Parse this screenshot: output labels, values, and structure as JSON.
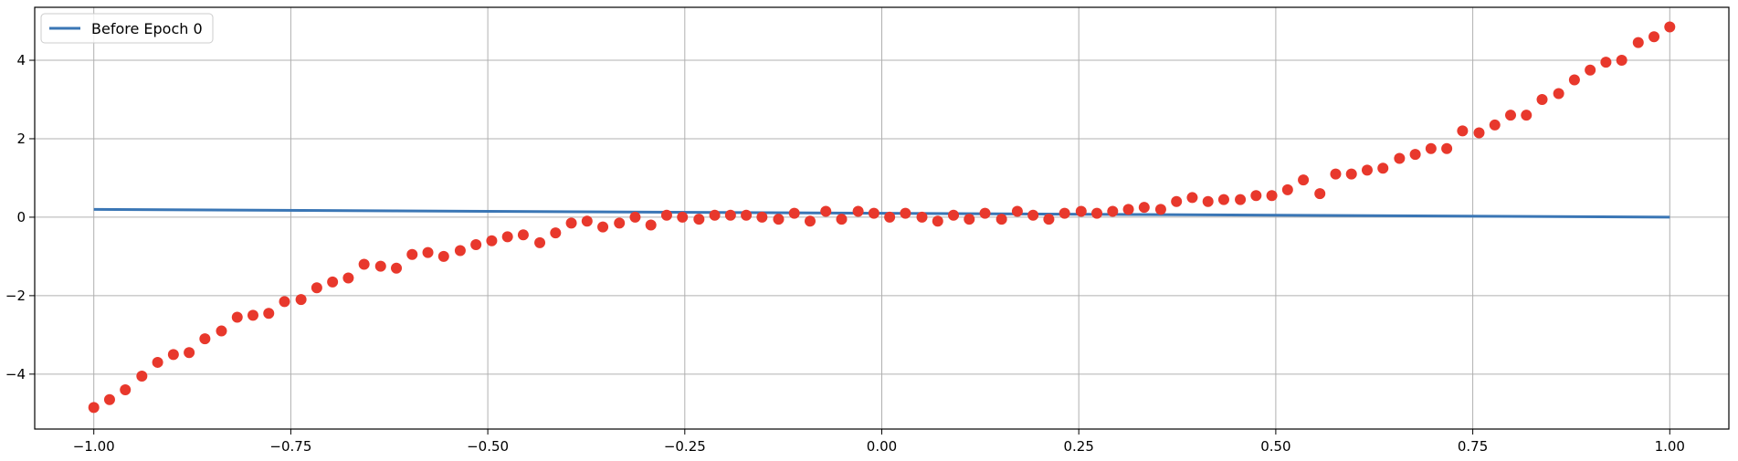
{
  "chart_data": {
    "type": "line+scatter",
    "title": "",
    "xlabel": "",
    "ylabel": "",
    "xlim": [
      -1.075,
      1.075
    ],
    "ylim": [
      -5.4,
      5.35
    ],
    "grid": true,
    "legend": {
      "placement": "top-left",
      "entries": [
        "Before Epoch 0"
      ]
    },
    "x_ticks": [
      -1.0,
      -0.75,
      -0.5,
      -0.25,
      0.0,
      0.25,
      0.5,
      0.75,
      1.0
    ],
    "x_tick_labels": [
      "−1.00",
      "−0.75",
      "−0.50",
      "−0.25",
      "0.00",
      "0.25",
      "0.50",
      "0.75",
      "1.00"
    ],
    "y_ticks": [
      -4,
      -2,
      0,
      2,
      4
    ],
    "y_tick_labels": [
      "−4",
      "−2",
      "0",
      "2",
      "4"
    ],
    "colors": {
      "line": "#3a76b5",
      "points": "#e8382c",
      "grid": "#b0b0b0"
    },
    "series": [
      {
        "name": "Before Epoch 0",
        "kind": "line",
        "x": [
          -1.0,
          1.0
        ],
        "y": [
          0.2,
          0.0
        ]
      },
      {
        "kind": "scatter",
        "x": [
          -1.0,
          -0.98,
          -0.96,
          -0.939,
          -0.919,
          -0.899,
          -0.879,
          -0.859,
          -0.838,
          -0.818,
          -0.798,
          -0.778,
          -0.758,
          -0.737,
          -0.717,
          -0.697,
          -0.677,
          -0.657,
          -0.636,
          -0.616,
          -0.596,
          -0.576,
          -0.556,
          -0.535,
          -0.515,
          -0.495,
          -0.475,
          -0.455,
          -0.434,
          -0.414,
          -0.394,
          -0.374,
          -0.354,
          -0.333,
          -0.313,
          -0.293,
          -0.273,
          -0.253,
          -0.232,
          -0.212,
          -0.192,
          -0.172,
          -0.152,
          -0.131,
          -0.111,
          -0.091,
          -0.071,
          -0.051,
          -0.03,
          -0.01,
          0.01,
          0.03,
          0.051,
          0.071,
          0.091,
          0.111,
          0.131,
          0.152,
          0.172,
          0.192,
          0.212,
          0.232,
          0.253,
          0.273,
          0.293,
          0.313,
          0.333,
          0.354,
          0.374,
          0.394,
          0.414,
          0.434,
          0.455,
          0.475,
          0.495,
          0.515,
          0.535,
          0.556,
          0.576,
          0.596,
          0.616,
          0.636,
          0.657,
          0.677,
          0.697,
          0.717,
          0.737,
          0.758,
          0.778,
          0.798,
          0.818,
          0.838,
          0.859,
          0.879,
          0.899,
          0.919,
          0.939,
          0.96,
          0.98,
          1.0
        ],
        "y": [
          -4.85,
          -4.65,
          -4.4,
          -4.05,
          -3.7,
          -3.5,
          -3.45,
          -3.1,
          -2.9,
          -2.55,
          -2.5,
          -2.45,
          -2.15,
          -2.1,
          -1.8,
          -1.65,
          -1.55,
          -1.2,
          -1.25,
          -1.3,
          -0.95,
          -0.9,
          -1.0,
          -0.85,
          -0.7,
          -0.6,
          -0.5,
          -0.45,
          -0.65,
          -0.4,
          -0.15,
          -0.1,
          -0.25,
          -0.15,
          0.0,
          -0.2,
          0.05,
          0.0,
          -0.05,
          0.05,
          0.05,
          0.05,
          0.0,
          -0.05,
          0.1,
          -0.1,
          0.15,
          -0.05,
          0.15,
          0.1,
          0.0,
          0.1,
          0.0,
          -0.1,
          0.05,
          -0.05,
          0.1,
          -0.05,
          0.15,
          0.05,
          -0.05,
          0.1,
          0.15,
          0.1,
          0.15,
          0.2,
          0.25,
          0.2,
          0.4,
          0.5,
          0.4,
          0.45,
          0.45,
          0.55,
          0.55,
          0.7,
          0.95,
          0.6,
          1.1,
          1.1,
          1.2,
          1.25,
          1.5,
          1.6,
          1.75,
          1.75,
          2.2,
          2.15,
          2.35,
          2.6,
          2.6,
          3.0,
          3.15,
          3.5,
          3.75,
          3.95,
          4.0,
          4.45,
          4.6,
          4.85
        ]
      }
    ]
  }
}
